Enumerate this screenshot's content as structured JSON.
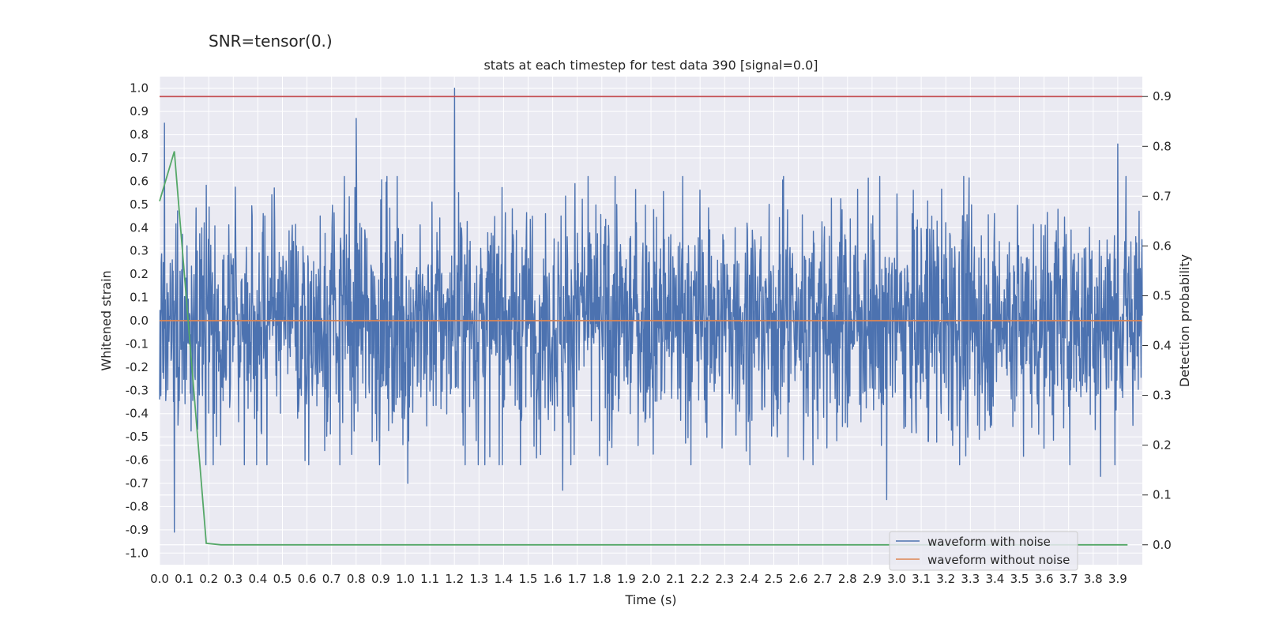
{
  "figure": {
    "suptitle": "SNR=tensor(0.)"
  },
  "chart_data": {
    "type": "line",
    "title": "stats at each timestep for test data 390 [signal=0.0]",
    "xlabel": "Time (s)",
    "ylabel_left": "Whitened strain",
    "ylabel_right": "Detection probability",
    "xlim": [
      0.0,
      4.0
    ],
    "ylim_left": [
      -1.05,
      1.05
    ],
    "ylim_right": [
      -0.04,
      0.94
    ],
    "x_ticks": [
      "0.0",
      "0.1",
      "0.2",
      "0.3",
      "0.4",
      "0.5",
      "0.6",
      "0.7",
      "0.8",
      "0.9",
      "1.0",
      "1.1",
      "1.2",
      "1.3",
      "1.4",
      "1.5",
      "1.6",
      "1.7",
      "1.8",
      "1.9",
      "2.0",
      "2.1",
      "2.2",
      "2.3",
      "2.4",
      "2.5",
      "2.6",
      "2.7",
      "2.8",
      "2.9",
      "3.0",
      "3.1",
      "3.2",
      "3.3",
      "3.4",
      "3.5",
      "3.6",
      "3.7",
      "3.8",
      "3.9"
    ],
    "y_ticks_left": [
      "1.0",
      "0.9",
      "0.8",
      "0.7",
      "0.6",
      "0.5",
      "0.4",
      "0.3",
      "0.2",
      "0.1",
      "0.0",
      "-0.1",
      "-0.2",
      "-0.3",
      "-0.4",
      "-0.5",
      "-0.6",
      "-0.7",
      "-0.8",
      "-0.9",
      "-1.0"
    ],
    "y_ticks_right": [
      "0.9",
      "0.8",
      "0.7",
      "0.6",
      "0.5",
      "0.4",
      "0.3",
      "0.2",
      "0.1",
      "0.0"
    ],
    "grid": true,
    "legend_position": "lower-right",
    "colors": {
      "noise": "#4c72b0",
      "clean": "#dd8452",
      "prob": "#55a868",
      "threshold": "#c44e52",
      "axes_bg": "#eaeaf2",
      "grid": "#ffffff"
    },
    "series": [
      {
        "name": "waveform with noise",
        "axis": "left",
        "description": "dense whitened-noise trace, amplitude mostly within ±0.5",
        "notable_peaks": [
          {
            "x": 0.02,
            "y": 0.85
          },
          {
            "x": 0.06,
            "y": -0.91
          },
          {
            "x": 0.8,
            "y": 0.87
          },
          {
            "x": 1.2,
            "y": 1.0
          },
          {
            "x": 1.01,
            "y": -0.7
          },
          {
            "x": 1.64,
            "y": -0.73
          },
          {
            "x": 2.96,
            "y": -0.77
          },
          {
            "x": 3.9,
            "y": 0.76
          },
          {
            "x": 3.83,
            "y": -0.67
          }
        ]
      },
      {
        "name": "waveform without noise",
        "axis": "left",
        "x": [
          0.0,
          4.0
        ],
        "y": [
          0.0,
          0.0
        ]
      },
      {
        "name": "detection probability",
        "axis": "right",
        "x": [
          0.0,
          0.06,
          0.19,
          0.25,
          3.94
        ],
        "y": [
          0.69,
          0.79,
          0.003,
          0.0,
          0.0
        ]
      },
      {
        "name": "threshold",
        "axis": "right",
        "x": [
          0.0,
          4.0
        ],
        "y": [
          0.9,
          0.9
        ]
      }
    ],
    "legend": [
      {
        "label": "waveform with noise",
        "series": "noise"
      },
      {
        "label": "waveform without noise",
        "series": "clean"
      }
    ]
  }
}
